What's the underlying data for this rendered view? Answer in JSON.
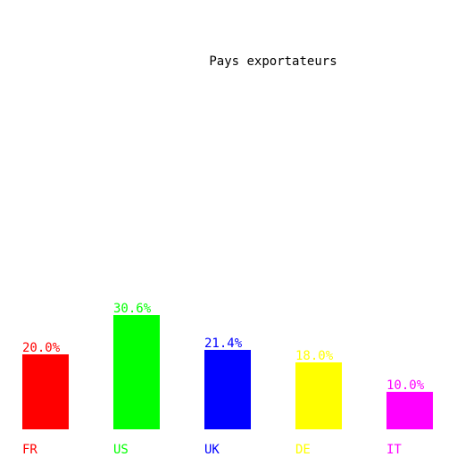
{
  "chart_data": {
    "type": "bar",
    "title": "Pays exportateurs",
    "categories": [
      "FR",
      "US",
      "UK",
      "DE",
      "IT"
    ],
    "values": [
      20.0,
      30.6,
      21.4,
      18.0,
      10.0
    ],
    "value_labels": [
      "20.0%",
      "30.6%",
      "21.4%",
      "18.0%",
      "10.0%"
    ],
    "colors": [
      "#ff0000",
      "#00ff00",
      "#0000ff",
      "#ffff00",
      "#ff00ff"
    ],
    "ylim": [
      0,
      100
    ],
    "grid": false,
    "axes_visible": false,
    "legend": "none"
  }
}
